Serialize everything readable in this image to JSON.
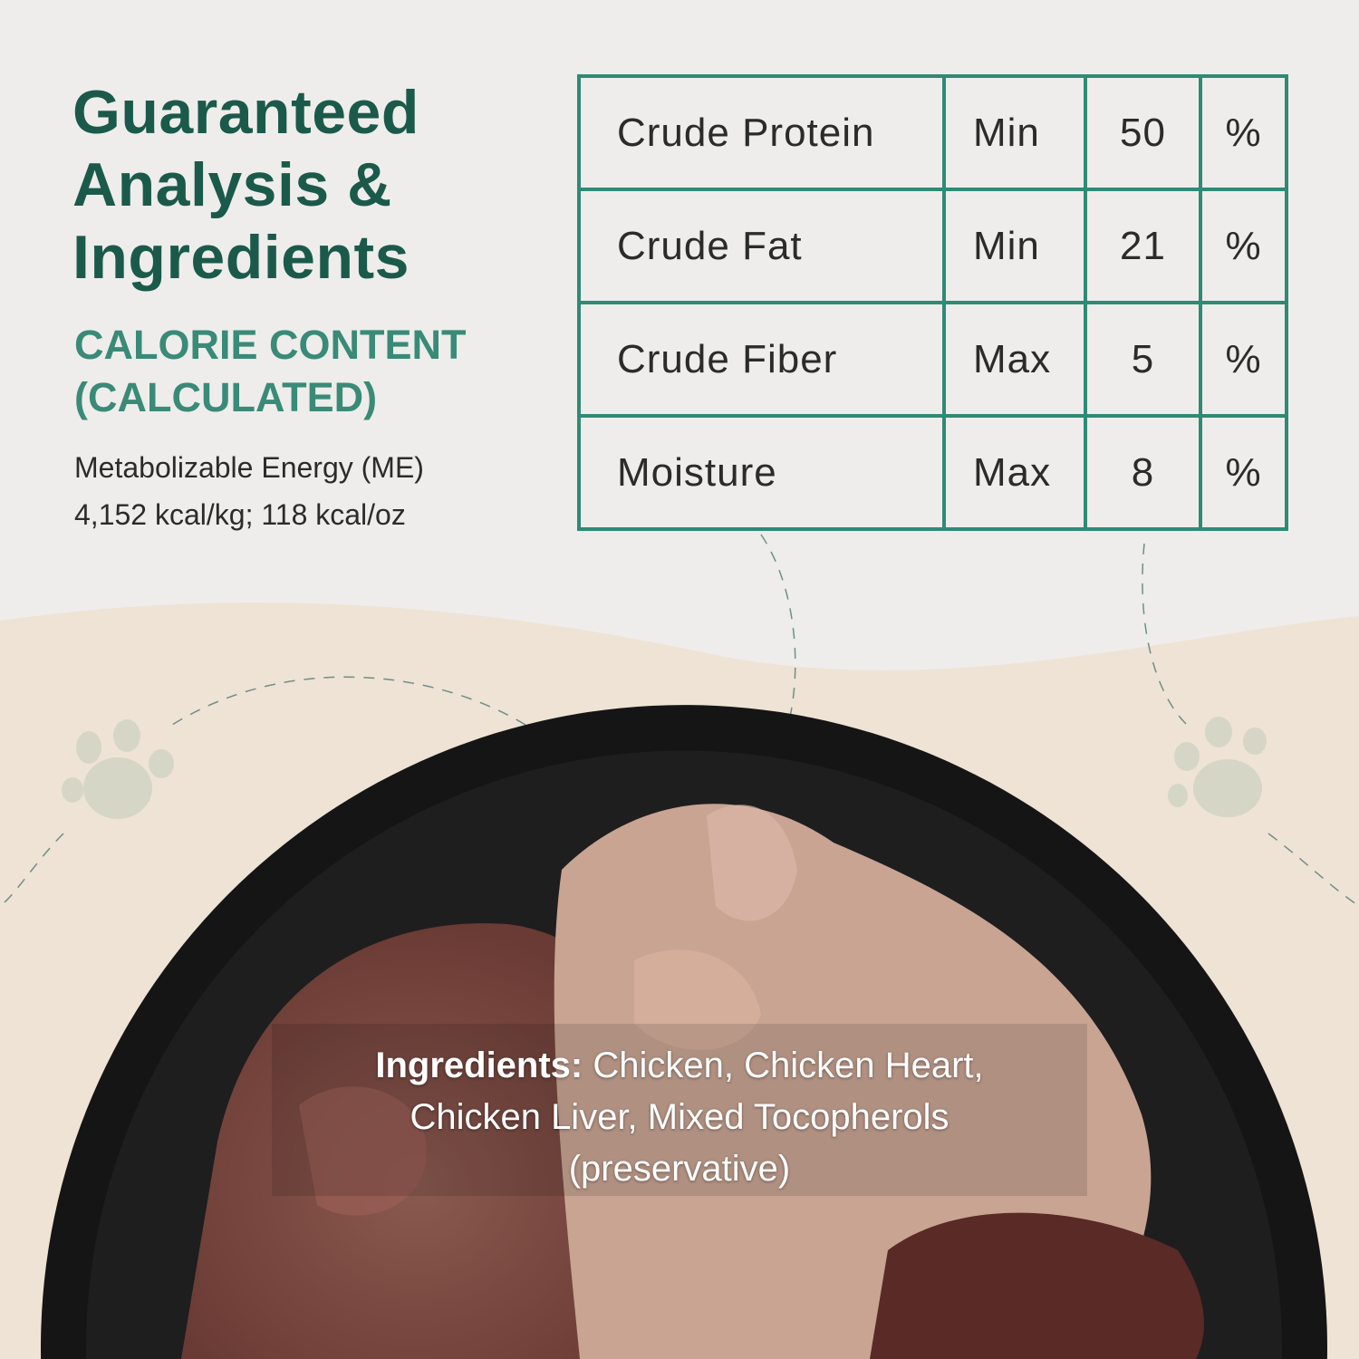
{
  "heading": {
    "line1": "Guaranteed",
    "line2": "Analysis &",
    "line3": "Ingredients"
  },
  "calorie": {
    "heading_line1": "CALORIE CONTENT",
    "heading_line2": "(CALCULATED)",
    "line1": "Metabolizable Energy (ME)",
    "line2": "4,152 kcal/kg; 118 kcal/oz"
  },
  "analysis": [
    {
      "nutrient": "Crude Protein",
      "qualifier": "Min",
      "value": "50",
      "unit": "%"
    },
    {
      "nutrient": "Crude Fat",
      "qualifier": "Min",
      "value": "21",
      "unit": "%"
    },
    {
      "nutrient": "Crude Fiber",
      "qualifier": "Max",
      "value": "5",
      "unit": "%"
    },
    {
      "nutrient": "Moisture",
      "qualifier": "Max",
      "value": "8",
      "unit": "%"
    }
  ],
  "ingredients": {
    "label": "Ingredients:",
    "line1": " Chicken, Chicken Heart,",
    "line2": "Chicken Liver, Mixed Tocopherols",
    "line3": "(preservative)"
  },
  "colors": {
    "title": "#1b5a4b",
    "accent": "#3a8a78",
    "table_border": "#2f8a76",
    "background_top": "#eeedeb",
    "background_bottom": "#eee3d5"
  },
  "icons": [
    "paw-print-icon",
    "paw-print-icon"
  ]
}
